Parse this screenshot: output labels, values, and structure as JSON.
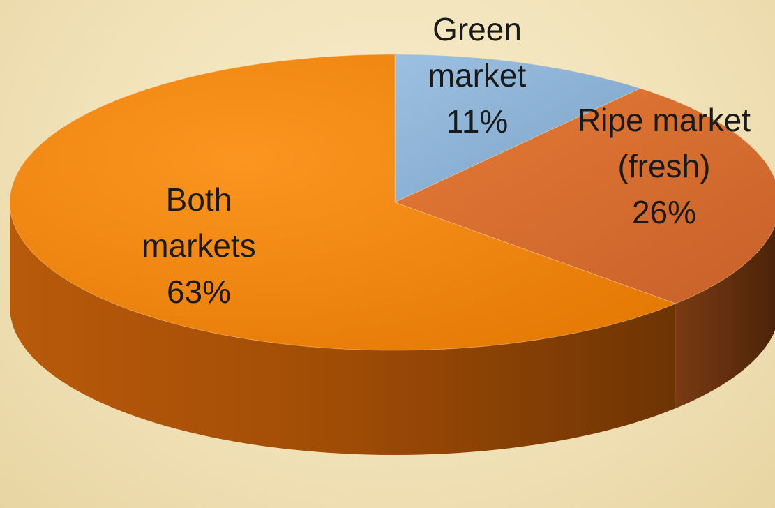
{
  "chart_data": {
    "type": "pie",
    "title": "",
    "three_d": true,
    "slices": [
      {
        "label": [
          "Green",
          "market"
        ],
        "value": 11,
        "value_label": "11%",
        "color": "#8fb3d9"
      },
      {
        "label": [
          "Ripe market",
          "(fresh)"
        ],
        "value": 26,
        "value_label": "26%",
        "color": "#e07a34"
      },
      {
        "label": [
          "Both",
          "markets"
        ],
        "value": 63,
        "value_label": "63%",
        "color": "#f7890e"
      }
    ],
    "legend": "none"
  }
}
